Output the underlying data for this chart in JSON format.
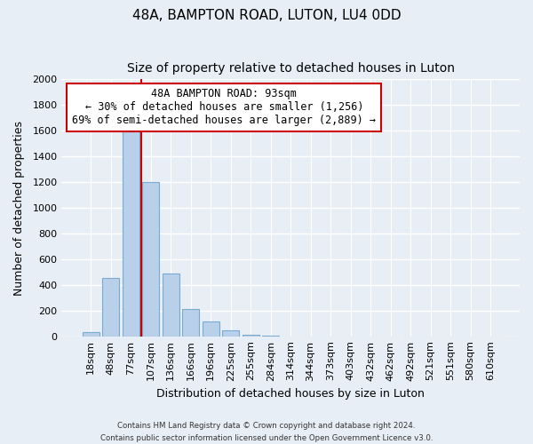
{
  "title": "48A, BAMPTON ROAD, LUTON, LU4 0DD",
  "subtitle": "Size of property relative to detached houses in Luton",
  "xlabel": "Distribution of detached houses by size in Luton",
  "ylabel": "Number of detached properties",
  "bar_labels": [
    "18sqm",
    "48sqm",
    "77sqm",
    "107sqm",
    "136sqm",
    "166sqm",
    "196sqm",
    "225sqm",
    "255sqm",
    "284sqm",
    "314sqm",
    "344sqm",
    "373sqm",
    "403sqm",
    "432sqm",
    "462sqm",
    "492sqm",
    "521sqm",
    "551sqm",
    "580sqm",
    "610sqm"
  ],
  "bar_heights": [
    35,
    455,
    1600,
    1200,
    490,
    210,
    115,
    45,
    15,
    5,
    0,
    0,
    0,
    0,
    0,
    0,
    0,
    0,
    0,
    0,
    0
  ],
  "bar_color": "#b8d0ea",
  "bar_edge_color": "#7aaad0",
  "vline_color": "#cc0000",
  "annotation_title": "48A BAMPTON ROAD: 93sqm",
  "annotation_line1": "← 30% of detached houses are smaller (1,256)",
  "annotation_line2": "69% of semi-detached houses are larger (2,889) →",
  "ylim": [
    0,
    2000
  ],
  "yticks": [
    0,
    200,
    400,
    600,
    800,
    1000,
    1200,
    1400,
    1600,
    1800,
    2000
  ],
  "footer1": "Contains HM Land Registry data © Crown copyright and database right 2024.",
  "footer2": "Contains public sector information licensed under the Open Government Licence v3.0.",
  "bg_color": "#e8eef5",
  "plot_bg_color": "#e8eef5",
  "grid_color": "#ffffff",
  "title_fontsize": 11,
  "subtitle_fontsize": 10,
  "axis_label_fontsize": 9,
  "tick_fontsize": 8
}
